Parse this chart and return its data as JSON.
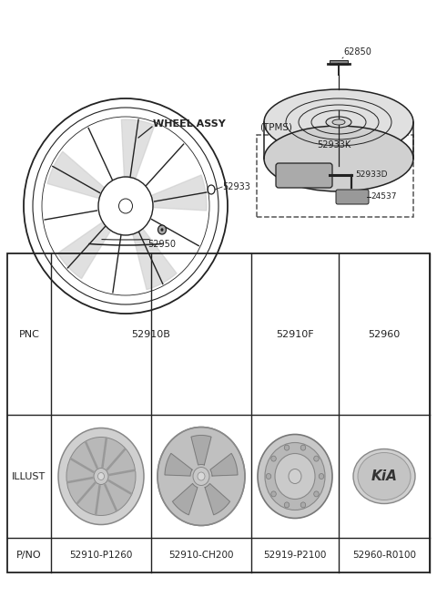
{
  "bg_color": "#ffffff",
  "line_color": "#222222",
  "diagram_labels": {
    "wheel_assy": "WHEEL ASSY",
    "part_52933": "52933",
    "part_52950": "52950",
    "part_62850": "62850",
    "tpms_box_label": "(TPMS)",
    "tpms_part1": "52933K",
    "tpms_part2": "52933D",
    "tpms_part3": "24537"
  },
  "table": {
    "pnc_values": [
      "52910B",
      "52910F",
      "52960"
    ],
    "pno_values": [
      "52910-P1260",
      "52910-CH200",
      "52919-P2100",
      "52960-R0100"
    ],
    "row_labels": [
      "PNC",
      "ILLUST",
      "P/NO"
    ]
  }
}
